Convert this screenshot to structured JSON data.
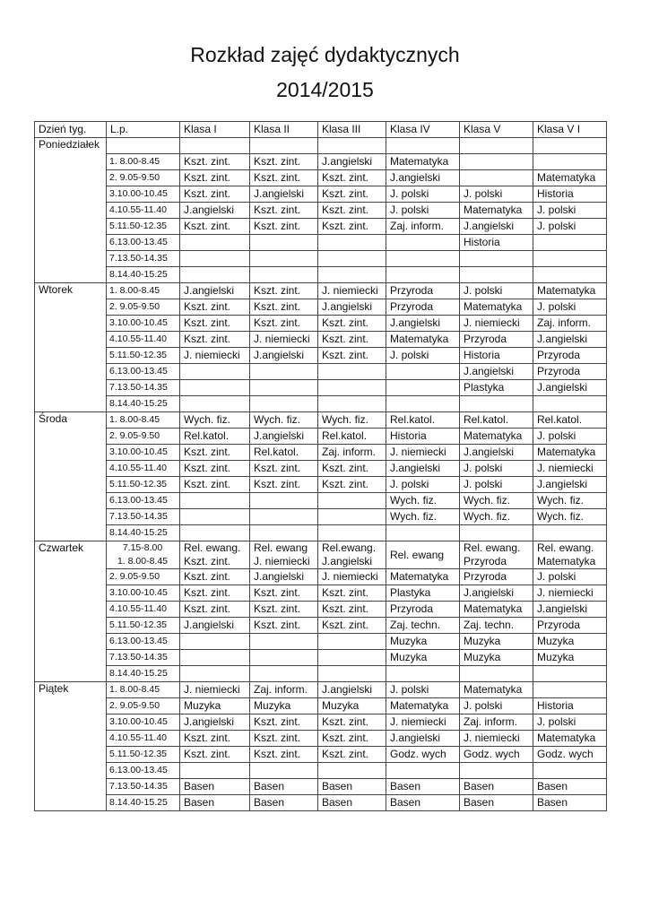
{
  "document": {
    "title": "Rozkład zajęć dydaktycznych",
    "year": "2014/2015"
  },
  "table": {
    "headers": [
      "Dzień tyg.",
      "L.p.",
      "Klasa I",
      "Klasa II",
      "Klasa III",
      "Klasa IV",
      "Klasa V",
      "Klasa V I"
    ],
    "days": [
      {
        "name": "Poniedziałek",
        "rows": [
          {
            "lp": "",
            "cells": [
              "",
              "",
              "",
              "",
              "",
              ""
            ]
          },
          {
            "lp": "1. 8.00-8.45",
            "cells": [
              "Kszt. zint.",
              "Kszt. zint.",
              "J.angielski",
              "Matematyka",
              "",
              ""
            ]
          },
          {
            "lp": "2. 9.05-9.50",
            "cells": [
              "Kszt. zint.",
              "Kszt. zint.",
              "Kszt. zint.",
              "J.angielski",
              "",
              "Matematyka"
            ]
          },
          {
            "lp": "3.10.00-10.45",
            "cells": [
              "Kszt. zint.",
              "J.angielski",
              "Kszt. zint.",
              "J. polski",
              "J. polski",
              "Historia"
            ]
          },
          {
            "lp": "4.10.55-11.40",
            "cells": [
              "J.angielski",
              "Kszt. zint.",
              "Kszt. zint.",
              "J. polski",
              "Matematyka",
              "J. polski"
            ]
          },
          {
            "lp": "5.11.50-12.35",
            "cells": [
              "Kszt. zint.",
              "Kszt. zint.",
              "Kszt. zint.",
              "Zaj. inform.",
              "J.angielski",
              "J. polski"
            ]
          },
          {
            "lp": "6.13.00-13.45",
            "cells": [
              "",
              "",
              "",
              "",
              "Historia",
              ""
            ]
          },
          {
            "lp": "7.13.50-14.35",
            "cells": [
              "",
              "",
              "",
              "",
              "",
              ""
            ]
          },
          {
            "lp": "8.14.40-15.25",
            "cells": [
              "",
              "",
              "",
              "",
              "",
              ""
            ]
          }
        ]
      },
      {
        "name": "Wtorek",
        "rows": [
          {
            "lp": "1. 8.00-8.45",
            "cells": [
              "J.angielski",
              "Kszt. zint.",
              "J. niemiecki",
              "Przyroda",
              "J. polski",
              "Matematyka"
            ]
          },
          {
            "lp": "2. 9.05-9.50",
            "cells": [
              "Kszt. zint.",
              "Kszt. zint.",
              "J.angielski",
              "Przyroda",
              "Matematyka",
              "J. polski"
            ]
          },
          {
            "lp": "3.10.00-10.45",
            "cells": [
              "Kszt. zint.",
              "Kszt. zint.",
              "Kszt. zint.",
              "J.angielski",
              "J. niemiecki",
              "Zaj. inform."
            ]
          },
          {
            "lp": "4.10.55-11.40",
            "cells": [
              "Kszt. zint.",
              "J. niemiecki",
              "Kszt. zint.",
              "Matematyka",
              "Przyroda",
              "J.angielski"
            ]
          },
          {
            "lp": "5.11.50-12.35",
            "cells": [
              "J. niemiecki",
              "J.angielski",
              "Kszt. zint.",
              "J. polski",
              "Historia",
              "Przyroda"
            ]
          },
          {
            "lp": "6.13.00-13.45",
            "cells": [
              "",
              "",
              "",
              "",
              "J.angielski",
              "Przyroda"
            ]
          },
          {
            "lp": "7.13.50-14.35",
            "cells": [
              "",
              "",
              "",
              "",
              "Plastyka",
              "J.angielski"
            ]
          },
          {
            "lp": "8.14.40-15.25",
            "cells": [
              "",
              "",
              "",
              "",
              "",
              ""
            ]
          }
        ]
      },
      {
        "name": "Środa",
        "rows": [
          {
            "lp": "1. 8.00-8.45",
            "cells": [
              "Wych. fiz.",
              "Wych. fiz.",
              "Wych. fiz.",
              "Rel.katol.",
              "Rel.katol.",
              "Rel.katol."
            ]
          },
          {
            "lp": "2. 9.05-9.50",
            "cells": [
              "Rel.katol.",
              "J.angielski",
              "Rel.katol.",
              "Historia",
              "Matematyka",
              "J. polski"
            ]
          },
          {
            "lp": "3.10.00-10.45",
            "cells": [
              "Kszt. zint.",
              "Rel.katol.",
              "Zaj. inform.",
              "J. niemiecki",
              "J.angielski",
              "Matematyka"
            ]
          },
          {
            "lp": "4.10.55-11.40",
            "cells": [
              "Kszt. zint.",
              "Kszt. zint.",
              "Kszt. zint.",
              "J.angielski",
              "J. polski",
              "J. niemiecki"
            ]
          },
          {
            "lp": "5.11.50-12.35",
            "cells": [
              "Kszt. zint.",
              "Kszt. zint.",
              "Kszt. zint.",
              "J. polski",
              "J. polski",
              "J.angielski"
            ]
          },
          {
            "lp": "6.13.00-13.45",
            "cells": [
              "",
              "",
              "",
              "Wych. fiz.",
              "Wych. fiz.",
              "Wych. fiz."
            ]
          },
          {
            "lp": "7.13.50-14.35",
            "cells": [
              "",
              "",
              "",
              "Wych. fiz.",
              "Wych. fiz.",
              "Wych. fiz."
            ]
          },
          {
            "lp": "8.14.40-15.25",
            "cells": [
              "",
              "",
              "",
              "",
              "",
              ""
            ]
          }
        ]
      },
      {
        "name": "Czwartek",
        "rows": [
          {
            "lp": "7.15-8.00\n1. 8.00-8.45",
            "cells": [
              "Rel. ewang.\nKszt. zint.",
              "Rel. ewang\nJ. niemiecki",
              "Rel.ewang.\nJ.angielski",
              "Rel. ewang",
              "Rel. ewang.\nPrzyroda",
              "Rel. ewang.\nMatematyka"
            ]
          },
          {
            "lp": "2. 9.05-9.50",
            "cells": [
              "Kszt. zint.",
              "J.angielski",
              "J. niemiecki",
              "Matematyka",
              "Przyroda",
              "J. polski"
            ]
          },
          {
            "lp": "3.10.00-10.45",
            "cells": [
              "Kszt. zint.",
              "Kszt. zint.",
              "Kszt. zint.",
              "Plastyka",
              "J.angielski",
              "J. niemiecki"
            ]
          },
          {
            "lp": "4.10.55-11.40",
            "cells": [
              "Kszt. zint.",
              "Kszt. zint.",
              "Kszt. zint.",
              "Przyroda",
              "Matematyka",
              "J.angielski"
            ]
          },
          {
            "lp": "5.11.50-12.35",
            "cells": [
              "J.angielski",
              "Kszt. zint.",
              "Kszt. zint.",
              "Zaj. techn.",
              "Zaj. techn.",
              "Przyroda"
            ]
          },
          {
            "lp": "6.13.00-13.45",
            "cells": [
              "",
              "",
              "",
              "Muzyka",
              "Muzyka",
              "Muzyka"
            ]
          },
          {
            "lp": "7.13.50-14.35",
            "cells": [
              "",
              "",
              "",
              "Muzyka",
              "Muzyka",
              "Muzyka"
            ]
          },
          {
            "lp": "8.14.40-15.25",
            "cells": [
              "",
              "",
              "",
              "",
              "",
              ""
            ]
          }
        ]
      },
      {
        "name": "Piątek",
        "rows": [
          {
            "lp": "1. 8.00-8.45",
            "cells": [
              "J. niemiecki",
              "Zaj. inform.",
              "J.angielski",
              "J. polski",
              "Matematyka",
              ""
            ]
          },
          {
            "lp": "2. 9.05-9.50",
            "cells": [
              "Muzyka",
              "Muzyka",
              "Muzyka",
              "Matematyka",
              "J. polski",
              "Historia"
            ]
          },
          {
            "lp": "3.10.00-10.45",
            "cells": [
              "J.angielski",
              "Kszt. zint.",
              "Kszt. zint.",
              "J. niemiecki",
              "Zaj. inform.",
              "J. polski"
            ]
          },
          {
            "lp": "4.10.55-11.40",
            "cells": [
              "Kszt. zint.",
              "Kszt. zint.",
              "Kszt. zint.",
              "J.angielski",
              "J. niemiecki",
              "Matematyka"
            ]
          },
          {
            "lp": "5.11.50-12.35",
            "cells": [
              "Kszt. zint.",
              "Kszt. zint.",
              "Kszt. zint.",
              "Godz. wych",
              "Godz. wych",
              "Godz. wych"
            ]
          },
          {
            "lp": "6.13.00-13.45",
            "cells": [
              "",
              "",
              "",
              "",
              "",
              ""
            ]
          },
          {
            "lp": "7.13.50-14.35",
            "cells": [
              "Basen",
              "Basen",
              "Basen",
              "Basen",
              "Basen",
              "Basen"
            ]
          },
          {
            "lp": "8.14.40-15.25",
            "cells": [
              "Basen",
              "Basen",
              "Basen",
              "Basen",
              "Basen",
              "Basen"
            ]
          }
        ]
      }
    ]
  }
}
